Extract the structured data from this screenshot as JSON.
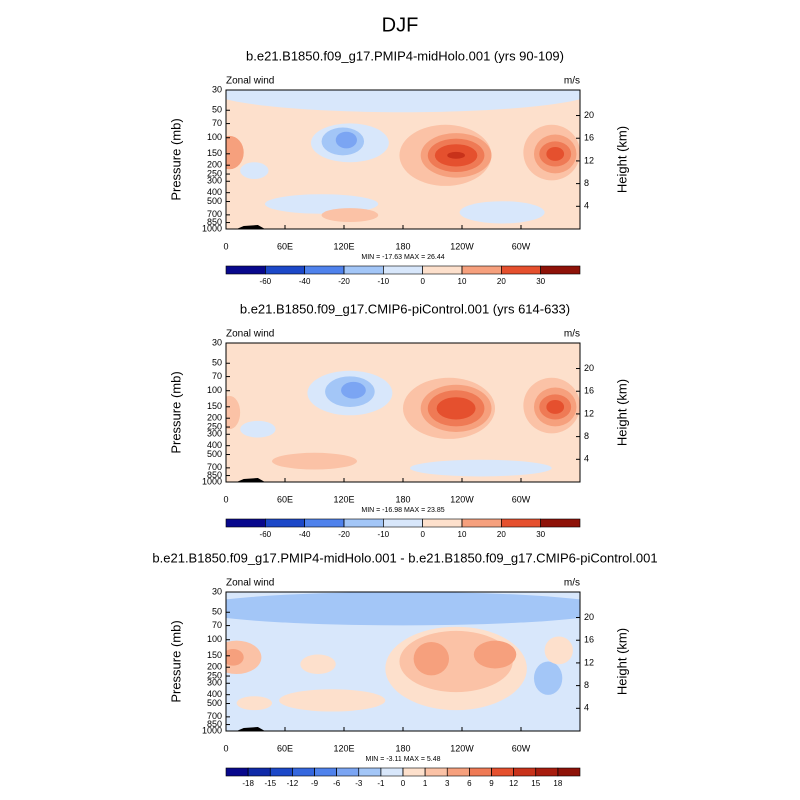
{
  "title": "DJF",
  "chart_data": [
    {
      "type": "contour",
      "title": "b.e21.B1850.f09_g17.PMIP4-midHolo.001 (yrs 90-109)",
      "left_label": "Zonal wind",
      "right_label": "m/s",
      "ylabel": "Pressure (mb)",
      "y2label": "Height (km)",
      "ylog": true,
      "ylim": [
        1000,
        30
      ],
      "yticks": [
        30,
        50,
        70,
        100,
        150,
        200,
        250,
        300,
        400,
        500,
        700,
        850,
        1000
      ],
      "y2lim": [
        0,
        24.5
      ],
      "y2ticks": [
        4,
        8,
        12,
        16,
        20
      ],
      "xlim": [
        0,
        360
      ],
      "xticks": [
        0,
        {
          "value": 60,
          "label": "60E"
        },
        {
          "value": 120,
          "label": "120E"
        },
        180,
        {
          "value": 240,
          "label": "120W"
        },
        {
          "value": 300,
          "label": "60W"
        }
      ],
      "stats": "MIN = -17.63  MAX =  26.44",
      "colorbar": {
        "ticks": [
          -60,
          -40,
          -20,
          -10,
          0,
          10,
          20,
          30
        ],
        "colors": [
          "#08088c",
          "#1c48c8",
          "#4f82ec",
          "#a3c6f7",
          "#d8e7fb",
          "#fde0cc",
          "#f6a07d",
          "#e5502e",
          "#8e1208"
        ]
      }
    },
    {
      "type": "contour",
      "title": "b.e21.B1850.f09_g17.CMIP6-piControl.001 (yrs 614-633)",
      "left_label": "Zonal wind",
      "right_label": "m/s",
      "ylabel": "Pressure (mb)",
      "y2label": "Height (km)",
      "ylog": true,
      "ylim": [
        1000,
        30
      ],
      "yticks": [
        30,
        50,
        70,
        100,
        150,
        200,
        250,
        300,
        400,
        500,
        700,
        850,
        1000
      ],
      "y2lim": [
        0,
        24.5
      ],
      "y2ticks": [
        4,
        8,
        12,
        16,
        20
      ],
      "xlim": [
        0,
        360
      ],
      "xticks": [
        0,
        {
          "value": 60,
          "label": "60E"
        },
        {
          "value": 120,
          "label": "120E"
        },
        180,
        {
          "value": 240,
          "label": "120W"
        },
        {
          "value": 300,
          "label": "60W"
        }
      ],
      "stats": "MIN = -16.98  MAX =  23.85",
      "colorbar": {
        "ticks": [
          -60,
          -40,
          -20,
          -10,
          0,
          10,
          20,
          30
        ],
        "colors": [
          "#08088c",
          "#1c48c8",
          "#4f82ec",
          "#a3c6f7",
          "#d8e7fb",
          "#fde0cc",
          "#f6a07d",
          "#e5502e",
          "#8e1208"
        ]
      }
    },
    {
      "type": "contour",
      "title": "b.e21.B1850.f09_g17.PMIP4-midHolo.001 - b.e21.B1850.f09_g17.CMIP6-piControl.001",
      "left_label": "Zonal wind",
      "right_label": "m/s",
      "ylabel": "Pressure (mb)",
      "y2label": "Height (km)",
      "ylog": true,
      "ylim": [
        1000,
        30
      ],
      "yticks": [
        30,
        50,
        70,
        100,
        150,
        200,
        250,
        300,
        400,
        500,
        700,
        850,
        1000
      ],
      "y2lim": [
        0,
        24.5
      ],
      "y2ticks": [
        4,
        8,
        12,
        16,
        20
      ],
      "xlim": [
        0,
        360
      ],
      "xticks": [
        0,
        {
          "value": 60,
          "label": "60E"
        },
        {
          "value": 120,
          "label": "120E"
        },
        180,
        {
          "value": 240,
          "label": "120W"
        },
        {
          "value": 300,
          "label": "60W"
        }
      ],
      "stats": "MIN = -3.11  MAX =  5.48",
      "colorbar": {
        "ticks": [
          -18,
          -15,
          -12,
          -9,
          -6,
          -3,
          -1,
          0,
          1,
          3,
          6,
          9,
          12,
          15,
          18
        ],
        "colors": [
          "#08088c",
          "#0f2aa8",
          "#1c48c8",
          "#3567de",
          "#4f82ec",
          "#7ba5f3",
          "#a3c6f7",
          "#d8e7fb",
          "#fde0cc",
          "#fbc2a6",
          "#f6a07d",
          "#ef7a55",
          "#e5502e",
          "#c8321a",
          "#a81d0e",
          "#8e1208"
        ]
      }
    }
  ]
}
